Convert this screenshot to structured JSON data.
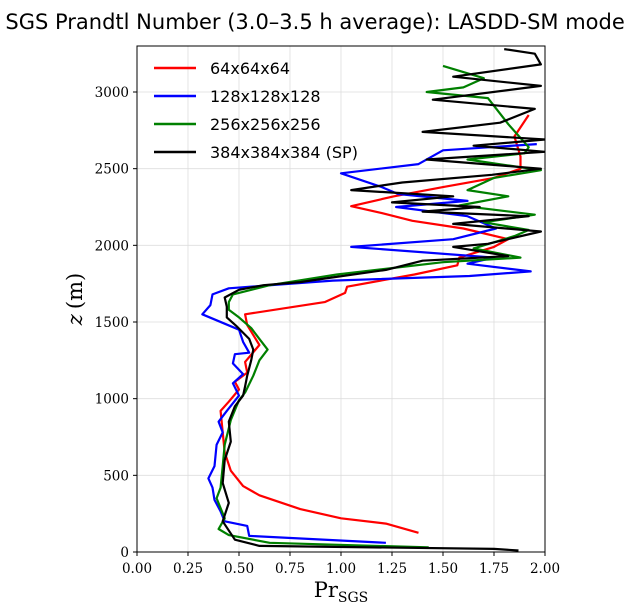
{
  "chart_data": {
    "type": "line",
    "title": "SGS Prandtl Number (3.0–3.5 h average): LASDD-SM model",
    "xlabel": "Pr",
    "xlabel_sub": "SGS",
    "ylabel_var": "z",
    "ylabel_unit": "(m)",
    "xlim": [
      0,
      2
    ],
    "ylim": [
      0,
      3300
    ],
    "xticks": [
      "0.00",
      "0.25",
      "0.50",
      "0.75",
      "1.00",
      "1.25",
      "1.50",
      "1.75",
      "2.00"
    ],
    "xtick_values": [
      0,
      0.25,
      0.5,
      0.75,
      1.0,
      1.25,
      1.5,
      1.75,
      2.0
    ],
    "yticks": [
      "0",
      "500",
      "1000",
      "1500",
      "2000",
      "2500",
      "3000"
    ],
    "ytick_values": [
      0,
      500,
      1000,
      1500,
      2000,
      2500,
      3000
    ],
    "grid": true,
    "legend_position": "top-left",
    "series": [
      {
        "name": "64x64x64",
        "color": "#ff0000",
        "points": [
          [
            1.38,
            125
          ],
          [
            1.22,
            185
          ],
          [
            1.0,
            220
          ],
          [
            0.8,
            280
          ],
          [
            0.6,
            370
          ],
          [
            0.52,
            430
          ],
          [
            0.46,
            530
          ],
          [
            0.43,
            650
          ],
          [
            0.42,
            780
          ],
          [
            0.41,
            920
          ],
          [
            0.45,
            980
          ],
          [
            0.5,
            1060
          ],
          [
            0.48,
            1110
          ],
          [
            0.54,
            1170
          ],
          [
            0.53,
            1240
          ],
          [
            0.6,
            1350
          ],
          [
            0.54,
            1480
          ],
          [
            0.53,
            1550
          ],
          [
            0.92,
            1630
          ],
          [
            1.02,
            1690
          ],
          [
            1.03,
            1730
          ],
          [
            1.36,
            1810
          ],
          [
            1.57,
            1870
          ],
          [
            1.58,
            1920
          ],
          [
            1.75,
            1990
          ],
          [
            1.82,
            2040
          ],
          [
            1.6,
            2110
          ],
          [
            1.35,
            2160
          ],
          [
            1.2,
            2210
          ],
          [
            1.05,
            2255
          ],
          [
            1.26,
            2320
          ],
          [
            1.5,
            2380
          ],
          [
            1.75,
            2440
          ],
          [
            1.88,
            2500
          ],
          [
            1.88,
            2580
          ],
          [
            1.85,
            2710
          ],
          [
            1.92,
            2850
          ]
        ]
      },
      {
        "name": "128x128x128",
        "color": "#0000ff",
        "points": [
          [
            1.22,
            60
          ],
          [
            0.55,
            105
          ],
          [
            0.54,
            170
          ],
          [
            0.43,
            200
          ],
          [
            0.41,
            265
          ],
          [
            0.38,
            340
          ],
          [
            0.37,
            420
          ],
          [
            0.35,
            480
          ],
          [
            0.38,
            560
          ],
          [
            0.39,
            700
          ],
          [
            0.42,
            780
          ],
          [
            0.4,
            850
          ],
          [
            0.44,
            920
          ],
          [
            0.5,
            1020
          ],
          [
            0.47,
            1100
          ],
          [
            0.52,
            1160
          ],
          [
            0.47,
            1230
          ],
          [
            0.48,
            1290
          ],
          [
            0.55,
            1300
          ],
          [
            0.52,
            1370
          ],
          [
            0.5,
            1450
          ],
          [
            0.32,
            1550
          ],
          [
            0.36,
            1610
          ],
          [
            0.37,
            1680
          ],
          [
            0.45,
            1720
          ],
          [
            0.96,
            1770
          ],
          [
            1.63,
            1800
          ],
          [
            1.93,
            1830
          ],
          [
            1.62,
            1880
          ],
          [
            1.75,
            1920
          ],
          [
            1.05,
            1990
          ],
          [
            1.55,
            2040
          ],
          [
            1.76,
            2110
          ],
          [
            1.62,
            2190
          ],
          [
            1.27,
            2250
          ],
          [
            1.62,
            2290
          ],
          [
            1.28,
            2335
          ],
          [
            1.2,
            2380
          ],
          [
            1.0,
            2470
          ],
          [
            1.38,
            2530
          ],
          [
            1.5,
            2620
          ],
          [
            1.96,
            2660
          ]
        ]
      },
      {
        "name": "256x256x256",
        "color": "#008000",
        "points": [
          [
            1.43,
            30
          ],
          [
            0.65,
            60
          ],
          [
            0.45,
            110
          ],
          [
            0.4,
            150
          ],
          [
            0.43,
            220
          ],
          [
            0.39,
            350
          ],
          [
            0.41,
            420
          ],
          [
            0.42,
            560
          ],
          [
            0.43,
            700
          ],
          [
            0.46,
            860
          ],
          [
            0.5,
            990
          ],
          [
            0.53,
            1040
          ],
          [
            0.57,
            1150
          ],
          [
            0.6,
            1250
          ],
          [
            0.64,
            1320
          ],
          [
            0.6,
            1390
          ],
          [
            0.56,
            1460
          ],
          [
            0.5,
            1530
          ],
          [
            0.45,
            1580
          ],
          [
            0.45,
            1630
          ],
          [
            0.47,
            1680
          ],
          [
            0.65,
            1740
          ],
          [
            0.98,
            1810
          ],
          [
            1.5,
            1890
          ],
          [
            1.88,
            1920
          ],
          [
            1.65,
            1980
          ],
          [
            1.85,
            2060
          ],
          [
            1.92,
            2100
          ],
          [
            1.7,
            2150
          ],
          [
            1.95,
            2200
          ],
          [
            1.58,
            2260
          ],
          [
            1.82,
            2320
          ],
          [
            1.62,
            2360
          ],
          [
            1.75,
            2440
          ],
          [
            1.98,
            2490
          ],
          [
            1.62,
            2560
          ],
          [
            1.9,
            2600
          ],
          [
            1.92,
            2640
          ],
          [
            1.82,
            2790
          ],
          [
            1.72,
            2960
          ],
          [
            1.42,
            3000
          ],
          [
            1.6,
            3030
          ],
          [
            1.7,
            3090
          ],
          [
            1.5,
            3170
          ]
        ]
      },
      {
        "name": "384x384x384 (SP)",
        "color": "#000000",
        "points": [
          [
            1.87,
            10
          ],
          [
            1.75,
            20
          ],
          [
            0.6,
            40
          ],
          [
            0.48,
            80
          ],
          [
            0.42,
            200
          ],
          [
            0.45,
            320
          ],
          [
            0.42,
            450
          ],
          [
            0.43,
            600
          ],
          [
            0.46,
            720
          ],
          [
            0.45,
            850
          ],
          [
            0.48,
            950
          ],
          [
            0.52,
            1020
          ],
          [
            0.53,
            1080
          ],
          [
            0.54,
            1150
          ],
          [
            0.56,
            1250
          ],
          [
            0.57,
            1320
          ],
          [
            0.55,
            1390
          ],
          [
            0.49,
            1470
          ],
          [
            0.44,
            1530
          ],
          [
            0.44,
            1600
          ],
          [
            0.43,
            1660
          ],
          [
            0.5,
            1710
          ],
          [
            0.62,
            1740
          ],
          [
            0.8,
            1760
          ],
          [
            0.9,
            1780
          ],
          [
            1.22,
            1840
          ],
          [
            1.4,
            1900
          ],
          [
            1.82,
            1930
          ],
          [
            1.55,
            1990
          ],
          [
            1.72,
            2010
          ],
          [
            1.98,
            2090
          ],
          [
            1.55,
            2140
          ],
          [
            1.92,
            2190
          ],
          [
            1.4,
            2220
          ],
          [
            1.68,
            2250
          ],
          [
            1.25,
            2280
          ],
          [
            1.55,
            2320
          ],
          [
            1.05,
            2360
          ],
          [
            1.3,
            2410
          ],
          [
            1.74,
            2460
          ],
          [
            1.98,
            2500
          ],
          [
            1.42,
            2560
          ],
          [
            2.0,
            2610
          ],
          [
            1.65,
            2650
          ],
          [
            2.0,
            2690
          ],
          [
            1.4,
            2740
          ],
          [
            1.78,
            2800
          ],
          [
            1.95,
            2890
          ],
          [
            1.45,
            2950
          ],
          [
            1.98,
            3040
          ],
          [
            1.55,
            3100
          ],
          [
            1.98,
            3180
          ],
          [
            1.95,
            3250
          ],
          [
            1.8,
            3280
          ]
        ]
      }
    ]
  }
}
